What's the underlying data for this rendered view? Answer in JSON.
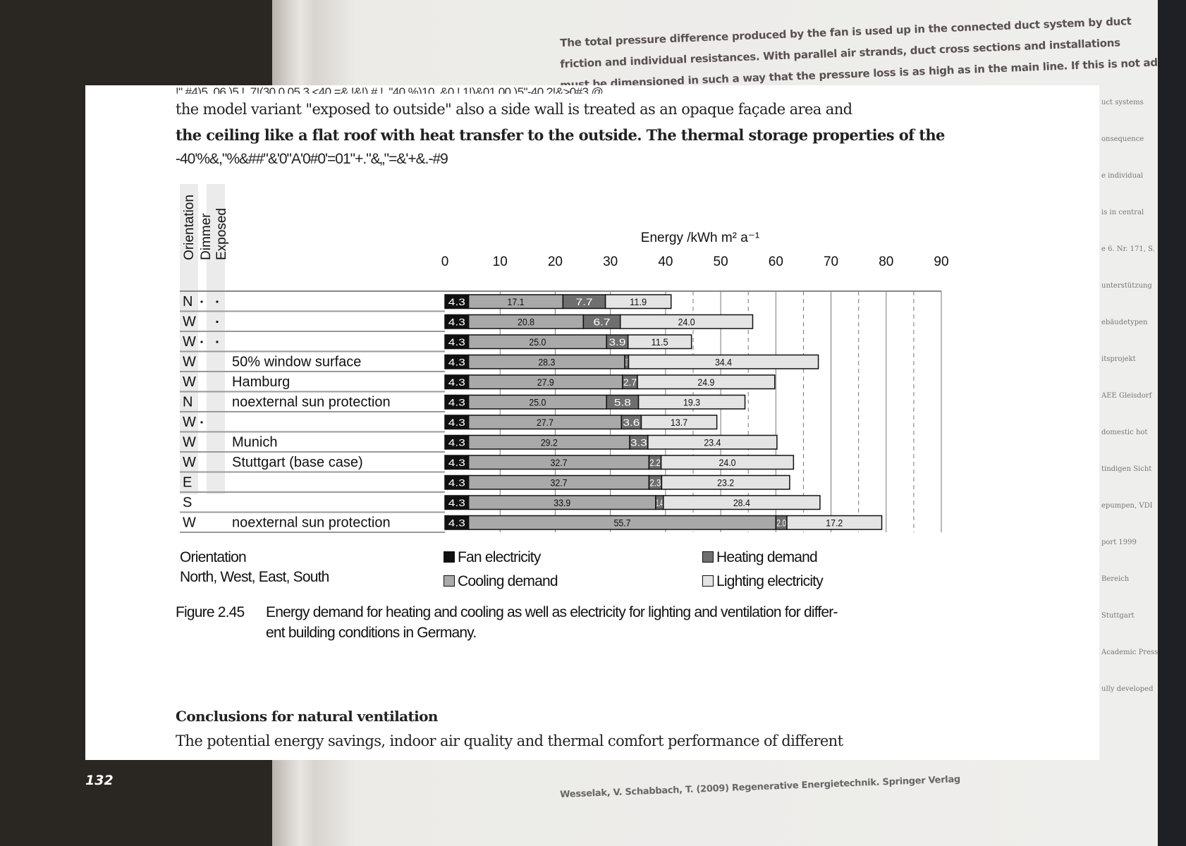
{
  "background_page": {
    "lines": [
      "The total pressure difference produced by the fan is used up in the connected duct system by duct",
      "friction and individual resistances. With parallel air strands, duct cross sections and installations",
      "must be dimensioned in such a way that the pressure loss is as high as in the main line. If this is not adhered to, the flow rates adjust in such a way"
    ],
    "side_fragments": [
      "uct systems",
      "onsequence",
      "e individual",
      "is in central",
      "e 6. Nr. 171, S.",
      "unterstützung",
      "ebäudetypen",
      "itsprojekt",
      "AEE Gleisdorf",
      "domestic hot",
      "tindigen Sicht",
      "epumpen, VDI",
      "port 1999",
      "Bereich",
      "Stuttgart",
      "Academic Press",
      "ully developed"
    ],
    "footer": "Wesselak, V. Schabbach, T. (2009) Regenerative Energietechnik. Springer Verlag"
  },
  "page": {
    "garbled_line": "!\" #4)5. 06,)5 !. 7!(30 0 05,3 <40 =& !&!) # !. \"40 %)10, &0 !.1!)&01 00,)5\"-40 ?!&>0#3 @.",
    "para_line1": "the model variant \"exposed to outside\" also a side wall is treated as an opaque façade area and",
    "para_line2": "the ceiling like a flat roof with heat transfer to the outside. The thermal storage properties of the",
    "para_line3": "-40'%&,\"%&##\"&'0\"A'0#0'=01\"+.\"&„\"=&'+&.-#9",
    "heading": "Conclusions for natural ventilation",
    "body_line": "The potential energy savings, indoor air quality and thermal comfort performance of different",
    "page_number": "132"
  },
  "chart_data": {
    "type": "bar",
    "orientation": "horizontal",
    "stacked": true,
    "xlabel": "Energy /kWh m² a⁻¹",
    "xlim": [
      0,
      90
    ],
    "xticks": [
      "0",
      "10",
      "20",
      "30",
      "40",
      "50",
      "60",
      "70",
      "80",
      "90"
    ],
    "column_headers": [
      "Orientation",
      "Dimmer",
      "Exposed"
    ],
    "rows": [
      {
        "orientation": "N",
        "dimmer": true,
        "exposed": true,
        "label": ""
      },
      {
        "orientation": "W",
        "dimmer": false,
        "exposed": true,
        "label": ""
      },
      {
        "orientation": "W",
        "dimmer": true,
        "exposed": true,
        "label": ""
      },
      {
        "orientation": "W",
        "dimmer": false,
        "exposed": false,
        "label": "50% window surface"
      },
      {
        "orientation": "W",
        "dimmer": false,
        "exposed": false,
        "label": "Hamburg"
      },
      {
        "orientation": "N",
        "dimmer": false,
        "exposed": false,
        "label": "noexternal sun protection"
      },
      {
        "orientation": "W",
        "dimmer": true,
        "exposed": false,
        "label": ""
      },
      {
        "orientation": "W",
        "dimmer": false,
        "exposed": false,
        "label": "Munich"
      },
      {
        "orientation": "W",
        "dimmer": false,
        "exposed": false,
        "label": "Stuttgart (base case)"
      },
      {
        "orientation": "E",
        "dimmer": false,
        "exposed": false,
        "label": ""
      },
      {
        "orientation": "S",
        "dimmer": false,
        "exposed": false,
        "label": ""
      },
      {
        "orientation": "W",
        "dimmer": false,
        "exposed": false,
        "label": "noexternal sun protection"
      }
    ],
    "series": [
      {
        "name": "Fan electricity",
        "color": "#111111",
        "values": [
          4.3,
          4.3,
          4.3,
          4.3,
          4.3,
          4.3,
          4.3,
          4.3,
          4.3,
          4.3,
          4.3,
          4.3
        ]
      },
      {
        "name": "Cooling demand",
        "color": "#a9a9a9",
        "values": [
          17.1,
          20.8,
          25.0,
          28.3,
          27.9,
          25.0,
          27.7,
          29.2,
          32.7,
          32.7,
          33.9,
          55.7
        ]
      },
      {
        "name": "Heating demand",
        "color": "#6f6f6f",
        "values": [
          7.7,
          6.7,
          3.9,
          0.7,
          2.7,
          5.8,
          3.6,
          3.3,
          2.2,
          2.3,
          1.4,
          2.0
        ]
      },
      {
        "name": "Lighting electricity",
        "color": "#e4e4e4",
        "values": [
          11.9,
          24.0,
          11.5,
          34.4,
          24.9,
          19.3,
          13.7,
          23.4,
          24.0,
          23.2,
          28.4,
          17.2
        ]
      }
    ],
    "legend": {
      "orientation_title": "Orientation",
      "orientation_values": "North, West, East, South",
      "placement": "bottom"
    },
    "caption_label": "Figure 2.45",
    "caption_line1": "Energy demand for heating and cooling as well as electricity for lighting and ventilation for differ-",
    "caption_line2": "ent building conditions in Germany."
  }
}
